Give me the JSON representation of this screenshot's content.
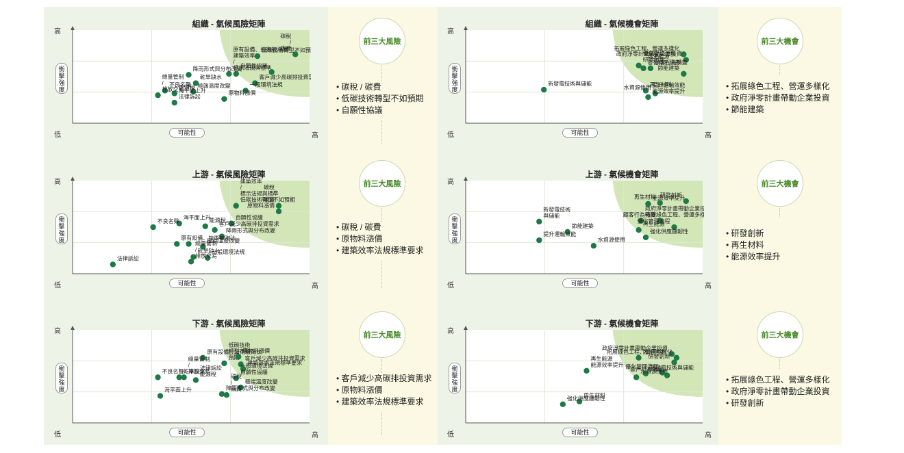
{
  "axis": {
    "high": "高",
    "low": "低",
    "y_label": "衝擊強度",
    "x_label": "可能性"
  },
  "risk": {
    "badge": "前三大風險",
    "charts": [
      {
        "title": "組織 - 氣候風險矩陣",
        "points": [
          {
            "x": 0.78,
            "y": 0.72,
            "label": "低碳技術轉型不如預期"
          },
          {
            "x": 0.94,
            "y": 0.74,
            "label": "碳稅 / 碳費"
          },
          {
            "x": 0.66,
            "y": 0.53,
            "label": "原有設備、技術被淘汰 建築效率 / 標示法規與標準"
          },
          {
            "x": 0.69,
            "y": 0.53,
            "label": ""
          },
          {
            "x": 0.84,
            "y": 0.55,
            "label": "自願性協議"
          },
          {
            "x": 0.49,
            "y": 0.52,
            "label": "降雨形式與分布改變"
          },
          {
            "x": 0.77,
            "y": 0.43,
            "label": "客戶減少高碳排投資需求"
          },
          {
            "x": 0.52,
            "y": 0.43,
            "label": "乾旱缺水"
          },
          {
            "x": 0.39,
            "y": 0.35,
            "label": "不良名聲"
          },
          {
            "x": 0.73,
            "y": 0.35,
            "label": "一般環境法規"
          },
          {
            "x": 0.51,
            "y": 0.34,
            "label": "極端溫度改變"
          },
          {
            "x": 0.43,
            "y": 0.32,
            "label": "能源稅"
          },
          {
            "x": 0.36,
            "y": 0.3,
            "label": "總量管制 / 排放交易"
          },
          {
            "x": 0.64,
            "y": 0.26,
            "label": "原物料漲價"
          },
          {
            "x": 0.43,
            "y": 0.22,
            "label": "海平面上升 法律訴訟"
          }
        ],
        "top3": [
          "碳稅 / 碳費",
          "低碳技術轉型不如預期",
          "自願性協議"
        ]
      },
      {
        "title": "上游 - 氣候風險矩陣",
        "points": [
          {
            "x": 0.69,
            "y": 0.73,
            "label": "建築效率 / 標示法規與標準 低碳技術轉型不如預期"
          },
          {
            "x": 0.87,
            "y": 0.73,
            "label": "碳稅 / 碳費"
          },
          {
            "x": 0.87,
            "y": 0.67,
            "label": "原物料漲價"
          },
          {
            "x": 0.45,
            "y": 0.54,
            "label": "海平面上升"
          },
          {
            "x": 0.67,
            "y": 0.54,
            "label": "自願性協議"
          },
          {
            "x": 0.34,
            "y": 0.5,
            "label": "不良名聲"
          },
          {
            "x": 0.56,
            "y": 0.51,
            "label": "能源稅"
          },
          {
            "x": 0.6,
            "y": 0.47,
            "label": "客戶減少高碳排投資需求"
          },
          {
            "x": 0.63,
            "y": 0.4,
            "label": "降雨形式與分布改變"
          },
          {
            "x": 0.44,
            "y": 0.32,
            "label": "原有設備、技術被淘汰"
          },
          {
            "x": 0.49,
            "y": 0.32,
            "label": ""
          },
          {
            "x": 0.55,
            "y": 0.29,
            "label": "極端溫度改變"
          },
          {
            "x": 0.51,
            "y": 0.18,
            "label": "乾旱缺水"
          },
          {
            "x": 0.57,
            "y": 0.17,
            "label": "一般環境法規"
          },
          {
            "x": 0.5,
            "y": 0.13,
            "label": "總量管制 / 排放交易"
          },
          {
            "x": 0.17,
            "y": 0.1,
            "label": "法律訴訟"
          }
        ],
        "top3": [
          "碳稅 / 碳費",
          "原物料漲價",
          "建築效率法規標準要求"
        ]
      },
      {
        "title": "下游 - 氣候風險矩陣",
        "points": [
          {
            "x": 0.55,
            "y": 0.7,
            "label": "原有設備、技術被淘汰"
          },
          {
            "x": 0.64,
            "y": 0.64,
            "label": "低碳技術 轉型不如 預期"
          },
          {
            "x": 0.7,
            "y": 0.71,
            "label": "原物料漲價"
          },
          {
            "x": 0.71,
            "y": 0.63,
            "label": "客戶減少高碳排投資需求"
          },
          {
            "x": 0.72,
            "y": 0.58,
            "label": "建築效率法規標準要求"
          },
          {
            "x": 0.45,
            "y": 0.49,
            "label": "乾旱缺水"
          },
          {
            "x": 0.47,
            "y": 0.49,
            "label": "總量管制 / 排放交易"
          },
          {
            "x": 0.52,
            "y": 0.46,
            "label": "法律訴訟 能源稅"
          },
          {
            "x": 0.69,
            "y": 0.48,
            "label": "一般環境法規 自願性協議"
          },
          {
            "x": 0.36,
            "y": 0.49,
            "label": "不良名聲"
          },
          {
            "x": 0.71,
            "y": 0.38,
            "label": "極端溫度改變"
          },
          {
            "x": 0.65,
            "y": 0.3,
            "label": "碳稅 / 碳費"
          },
          {
            "x": 0.63,
            "y": 0.31,
            "label": "降雨形式與分布改變"
          },
          {
            "x": 0.37,
            "y": 0.29,
            "label": "海平面上升"
          }
        ],
        "top3": [
          "客戶減少高碳排投資需求",
          "原物料漲價",
          "建築效率法規標準要求"
        ]
      }
    ]
  },
  "opportunity": {
    "badge": "前三大機會",
    "charts": [
      {
        "title": "組織 - 氣候機會矩陣",
        "points": [
          {
            "x": 0.92,
            "y": 0.74,
            "label": "拓展綠色工程、營運多樣化"
          },
          {
            "x": 0.93,
            "y": 0.68,
            "label": "政府淨零計畫帶動企業投資"
          },
          {
            "x": 0.73,
            "y": 0.62,
            "label": "優化管理流程 研發創新"
          },
          {
            "x": 0.75,
            "y": 0.59,
            "label": "再生能源 發行綠色債券"
          },
          {
            "x": 0.78,
            "y": 0.59,
            "label": "顧客行為轉變"
          },
          {
            "x": 0.92,
            "y": 0.53,
            "label": "節能建築"
          },
          {
            "x": 0.76,
            "y": 0.35,
            "label": "再生材料"
          },
          {
            "x": 0.8,
            "y": 0.32,
            "label": "水資源使用"
          },
          {
            "x": 0.77,
            "y": 0.28,
            "label": "提升運輸效能 能源效率提升"
          },
          {
            "x": 0.33,
            "y": 0.36,
            "label": "新發電技術與儲能"
          }
        ],
        "top3": [
          "拓展綠色工程、營運多樣化",
          "政府淨零計畫帶動企業投資",
          "節能建築"
        ]
      },
      {
        "title": "上游 - 氣候機會矩陣",
        "points": [
          {
            "x": 0.77,
            "y": 0.75,
            "label": "能源效率提升"
          },
          {
            "x": 0.82,
            "y": 0.76,
            "label": "再生材料"
          },
          {
            "x": 0.93,
            "y": 0.78,
            "label": "研發創新"
          },
          {
            "x": 0.74,
            "y": 0.57,
            "label": "政府淨零計畫帶動企業投資 拓展綠色工程、營運多樣化"
          },
          {
            "x": 0.82,
            "y": 0.57,
            "label": "顧客行為轉變"
          },
          {
            "x": 0.88,
            "y": 0.5,
            "label": "優化管理流程"
          },
          {
            "x": 0.31,
            "y": 0.56,
            "label": "新發電技術 與儲能"
          },
          {
            "x": 0.43,
            "y": 0.45,
            "label": "節能建築"
          },
          {
            "x": 0.73,
            "y": 0.47,
            "label": "再生能源"
          },
          {
            "x": 0.76,
            "y": 0.39,
            "label": "強化供應鏈韌性"
          },
          {
            "x": 0.31,
            "y": 0.36,
            "label": "提升運輸效能"
          },
          {
            "x": 0.54,
            "y": 0.3,
            "label": "水資源使用"
          }
        ],
        "top3": [
          "研發創新",
          "再生材料",
          "能源效率提升"
        ]
      },
      {
        "title": "下游 - 氣候機會矩陣",
        "points": [
          {
            "x": 0.87,
            "y": 0.74,
            "label": "政府淨零計畫帶動企業投資"
          },
          {
            "x": 0.89,
            "y": 0.7,
            "label": "拓展綠色工程、營運多樣化"
          },
          {
            "x": 0.88,
            "y": 0.65,
            "label": "研發創新"
          },
          {
            "x": 0.83,
            "y": 0.54,
            "label": "優化管理流程"
          },
          {
            "x": 0.85,
            "y": 0.51,
            "label": "客戶行為轉變"
          },
          {
            "x": 0.73,
            "y": 0.7,
            "label": "節能建築"
          },
          {
            "x": 0.76,
            "y": 0.53,
            "label": "新發電技術與儲能"
          },
          {
            "x": 0.72,
            "y": 0.49,
            "label": "水資源使用"
          },
          {
            "x": 0.51,
            "y": 0.56,
            "label": "再生能源 能源效率提升"
          },
          {
            "x": 0.48,
            "y": 0.23,
            "label": "再生材料"
          },
          {
            "x": 0.41,
            "y": 0.2,
            "label": "強化供應鏈韌性"
          }
        ],
        "top3": [
          "拓展綠色工程、營運多樣化",
          "政府淨零計畫帶動企業投資",
          "研發創新"
        ]
      }
    ]
  }
}
